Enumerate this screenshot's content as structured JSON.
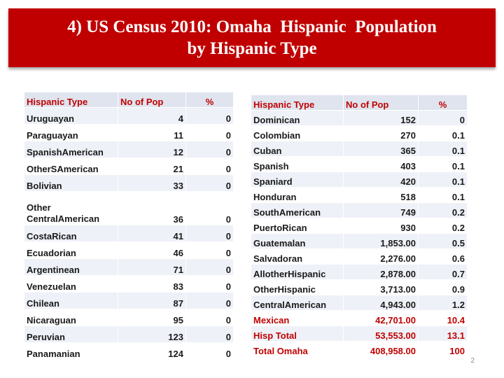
{
  "title": {
    "line1": "4) US Census 2010: Omaha  Hispanic  Population",
    "line2": "by Hispanic Type"
  },
  "left_table": {
    "headers": [
      "Hispanic Type",
      "No of Pop",
      "%"
    ],
    "rows": [
      [
        "Uruguayan",
        "4",
        "0"
      ],
      [
        "Paraguayan",
        "11",
        "0"
      ],
      [
        "SpanishAmerican",
        "12",
        "0"
      ],
      [
        "OtherSAmerican",
        "21",
        "0"
      ],
      [
        "Bolivian",
        "33",
        "0"
      ],
      [
        "Other CentralAmerican",
        "36",
        "0"
      ],
      [
        "CostaRican",
        "41",
        "0"
      ],
      [
        "Ecuadorian",
        "46",
        "0"
      ],
      [
        "Argentinean",
        "71",
        "0"
      ],
      [
        "Venezuelan",
        "83",
        "0"
      ],
      [
        "Chilean",
        "87",
        "0"
      ],
      [
        "Nicaraguan",
        "95",
        "0"
      ],
      [
        "Peruvian",
        "123",
        "0"
      ],
      [
        "Panamanian",
        "124",
        "0"
      ]
    ]
  },
  "right_table": {
    "headers": [
      "Hispanic Type",
      "No of Pop",
      "%"
    ],
    "rows": [
      [
        "Dominican",
        "152",
        "0"
      ],
      [
        "Colombian",
        "270",
        "0.1"
      ],
      [
        "Cuban",
        "365",
        "0.1"
      ],
      [
        "Spanish",
        "403",
        "0.1"
      ],
      [
        "Spaniard",
        "420",
        "0.1"
      ],
      [
        "Honduran",
        "518",
        "0.1"
      ],
      [
        "SouthAmerican",
        "749",
        "0.2"
      ],
      [
        "PuertoRican",
        "930",
        "0.2"
      ],
      [
        "Guatemalan",
        "1,853.00",
        "0.5"
      ],
      [
        "Salvadoran",
        "2,276.00",
        "0.6"
      ],
      [
        "AllotherHispanic",
        "2,878.00",
        "0.7"
      ],
      [
        "OtherHispanic",
        "3,713.00",
        "0.9"
      ],
      [
        "CentralAmerican",
        "4,943.00",
        "1.2"
      ],
      [
        "Mexican",
        "42,701.00",
        "10.4"
      ],
      [
        "Hisp Total",
        "53,553.00",
        "13.1"
      ],
      [
        "Total Omaha",
        "408,958.00",
        "100"
      ]
    ]
  },
  "colors": {
    "banner": "#c00000",
    "header_text": "#c00000",
    "header_fill": "#dfe4ee",
    "stripe_fill": "#eef1f7"
  },
  "page_number": "2"
}
